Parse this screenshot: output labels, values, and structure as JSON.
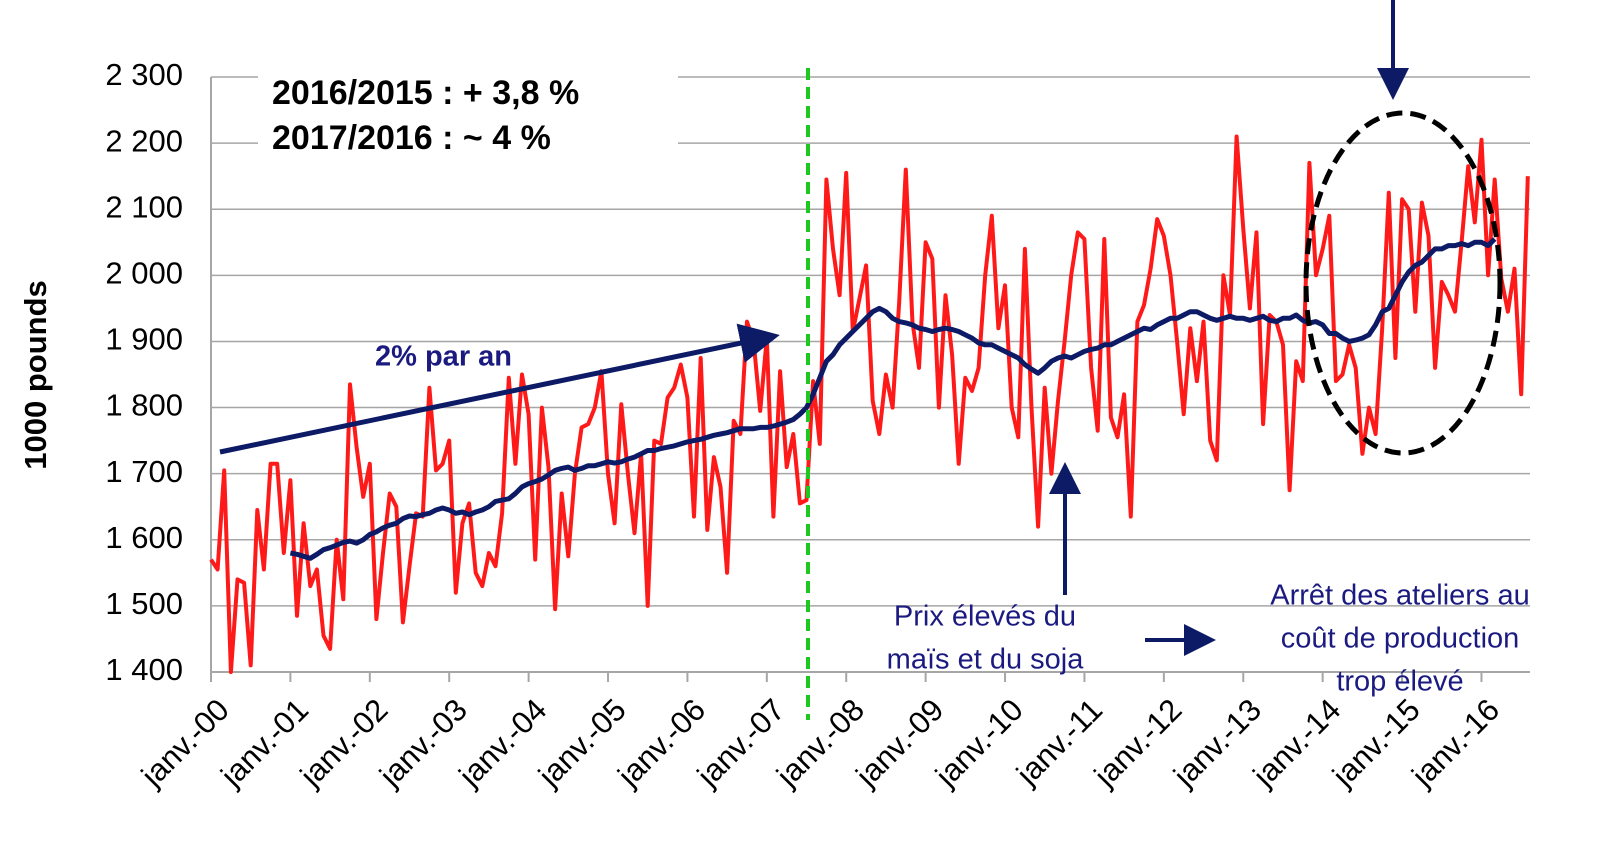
{
  "chart_data": {
    "type": "line",
    "y_label": "1000 pounds",
    "annotations": {
      "growth_1": "2016/2015 : + 3,8 %",
      "growth_2": "2017/2016 : ~ 4 %",
      "trend": "2% par an",
      "cause_1": [
        "Prix élevés du",
        "maïs et du soja"
      ],
      "cause_2": [
        "Arrêt des ateliers au",
        "coût de production",
        "trop élevé"
      ]
    },
    "categories": [
      "janv.-00",
      null,
      null,
      null,
      null,
      null,
      null,
      null,
      null,
      null,
      null,
      null,
      "janv.-01",
      null,
      null,
      null,
      null,
      null,
      null,
      null,
      null,
      null,
      null,
      null,
      "janv.-02",
      null,
      null,
      null,
      null,
      null,
      null,
      null,
      null,
      null,
      null,
      null,
      "janv.-03",
      null,
      null,
      null,
      null,
      null,
      null,
      null,
      null,
      null,
      null,
      null,
      "janv.-04",
      null,
      null,
      null,
      null,
      null,
      null,
      null,
      null,
      null,
      null,
      null,
      "janv.-05",
      null,
      null,
      null,
      null,
      null,
      null,
      null,
      null,
      null,
      null,
      null,
      "janv.-06",
      null,
      null,
      null,
      null,
      null,
      null,
      null,
      null,
      null,
      null,
      null,
      "janv.-07",
      null,
      null,
      null,
      null,
      null,
      null,
      null,
      null,
      null,
      null,
      null,
      "janv.-08",
      null,
      null,
      null,
      null,
      null,
      null,
      null,
      null,
      null,
      null,
      null,
      "janv.-09",
      null,
      null,
      null,
      null,
      null,
      null,
      null,
      null,
      null,
      null,
      null,
      "janv.-10",
      null,
      null,
      null,
      null,
      null,
      null,
      null,
      null,
      null,
      null,
      null,
      "janv.-11",
      null,
      null,
      null,
      null,
      null,
      null,
      null,
      null,
      null,
      null,
      null,
      "janv.-12",
      null,
      null,
      null,
      null,
      null,
      null,
      null,
      null,
      null,
      null,
      null,
      "janv.-13",
      null,
      null,
      null,
      null,
      null,
      null,
      null,
      null,
      null,
      null,
      null,
      "janv.-14",
      null,
      null,
      null,
      null,
      null,
      null,
      null,
      null,
      null,
      null,
      null,
      "janv.-15",
      null,
      null,
      null,
      null,
      null,
      null,
      null,
      null,
      null,
      null,
      null,
      "janv.-16",
      null,
      null,
      null,
      null,
      null,
      null,
      null
    ],
    "series": [
      {
        "color": "#ff1a1a",
        "width": 4,
        "values": [
          1570,
          1555,
          1705,
          1400,
          1540,
          1535,
          1410,
          1645,
          1555,
          1715,
          1715,
          1580,
          1690,
          1485,
          1625,
          1530,
          1555,
          1455,
          1435,
          1600,
          1510,
          1835,
          1740,
          1665,
          1715,
          1480,
          1580,
          1670,
          1650,
          1475,
          1560,
          1640,
          1635,
          1830,
          1705,
          1715,
          1750,
          1520,
          1625,
          1655,
          1550,
          1530,
          1580,
          1560,
          1640,
          1845,
          1715,
          1850,
          1790,
          1570,
          1800,
          1710,
          1495,
          1670,
          1575,
          1700,
          1770,
          1775,
          1800,
          1855,
          1700,
          1625,
          1805,
          1700,
          1610,
          1730,
          1500,
          1750,
          1745,
          1815,
          1830,
          1865,
          1815,
          1635,
          1875,
          1615,
          1725,
          1680,
          1550,
          1780,
          1760,
          1930,
          1900,
          1795,
          1905,
          1635,
          1855,
          1710,
          1760,
          1655,
          1660,
          1840,
          1745,
          2145,
          2040,
          1970,
          2155,
          1915,
          1965,
          2015,
          1810,
          1760,
          1850,
          1800,
          1960,
          2160,
          1930,
          1860,
          2050,
          2025,
          1800,
          1970,
          1880,
          1715,
          1845,
          1825,
          1860,
          2000,
          2090,
          1920,
          1985,
          1800,
          1755,
          2040,
          1800,
          1620,
          1830,
          1700,
          1810,
          1900,
          2000,
          2065,
          2055,
          1860,
          1765,
          2055,
          1785,
          1755,
          1820,
          1635,
          1930,
          1955,
          2010,
          2085,
          2060,
          2000,
          1900,
          1790,
          1920,
          1840,
          1930,
          1750,
          1720,
          2000,
          1940,
          2210,
          2070,
          1950,
          2065,
          1775,
          1940,
          1930,
          1895,
          1675,
          1870,
          1840,
          2170,
          2000,
          2040,
          2090,
          1840,
          1850,
          1895,
          1860,
          1730,
          1800,
          1760,
          1920,
          2125,
          1875,
          2115,
          2100,
          1945,
          2110,
          2060,
          1860,
          1990,
          1970,
          1945,
          2050,
          2165,
          2080,
          2205,
          2000,
          2145,
          1995,
          1945,
          2010,
          1820,
          2150
        ]
      },
      {
        "color": "#0d1a66",
        "width": 5,
        "values": [
          null,
          null,
          null,
          null,
          null,
          null,
          null,
          null,
          null,
          null,
          null,
          null,
          1580,
          1578,
          1575,
          1572,
          1578,
          1585,
          1588,
          1592,
          1596,
          1598,
          1595,
          1600,
          1608,
          1612,
          1618,
          1622,
          1625,
          1632,
          1636,
          1635,
          1638,
          1640,
          1645,
          1648,
          1645,
          1640,
          1642,
          1638,
          1642,
          1645,
          1650,
          1658,
          1660,
          1662,
          1670,
          1680,
          1685,
          1688,
          1692,
          1698,
          1705,
          1708,
          1710,
          1705,
          1708,
          1712,
          1712,
          1715,
          1718,
          1716,
          1718,
          1722,
          1725,
          1730,
          1735,
          1735,
          1738,
          1740,
          1742,
          1745,
          1748,
          1750,
          1752,
          1755,
          1758,
          1760,
          1762,
          1765,
          1768,
          1768,
          1768,
          1770,
          1770,
          1772,
          1775,
          1778,
          1782,
          1790,
          1800,
          1820,
          1845,
          1870,
          1880,
          1895,
          1905,
          1915,
          1925,
          1935,
          1945,
          1950,
          1945,
          1935,
          1930,
          1928,
          1925,
          1920,
          1918,
          1915,
          1918,
          1920,
          1918,
          1915,
          1910,
          1905,
          1898,
          1895,
          1895,
          1890,
          1885,
          1880,
          1875,
          1865,
          1858,
          1852,
          1860,
          1870,
          1875,
          1878,
          1875,
          1880,
          1885,
          1888,
          1890,
          1895,
          1895,
          1900,
          1905,
          1910,
          1915,
          1920,
          1918,
          1925,
          1930,
          1935,
          1935,
          1940,
          1945,
          1945,
          1940,
          1935,
          1932,
          1935,
          1938,
          1935,
          1935,
          1932,
          1935,
          1938,
          1932,
          1930,
          1935,
          1935,
          1940,
          1932,
          1928,
          1930,
          1925,
          1912,
          1912,
          1905,
          1900,
          1902,
          1905,
          1910,
          1925,
          1945,
          1950,
          1970,
          1990,
          2005,
          2015,
          2020,
          2030,
          2040,
          2040,
          2045,
          2045,
          2048,
          2045,
          2050,
          2050,
          2045,
          2055,
          null,
          null,
          null,
          null,
          null
        ]
      }
    ],
    "ylim": [
      1400,
      2300
    ],
    "yticks": [
      {
        "value": 1400,
        "label": "1 400"
      },
      {
        "value": 1500,
        "label": "1 500"
      },
      {
        "value": 1600,
        "label": "1 600"
      },
      {
        "value": 1700,
        "label": "1 700"
      },
      {
        "value": 1800,
        "label": "1 800"
      },
      {
        "value": 1900,
        "label": "1 900"
      },
      {
        "value": 2000,
        "label": "2 000"
      },
      {
        "value": 2100,
        "label": "2 100"
      },
      {
        "value": 2200,
        "label": "2 200"
      },
      {
        "value": 2300,
        "label": "2 300"
      }
    ],
    "grid": true
  }
}
